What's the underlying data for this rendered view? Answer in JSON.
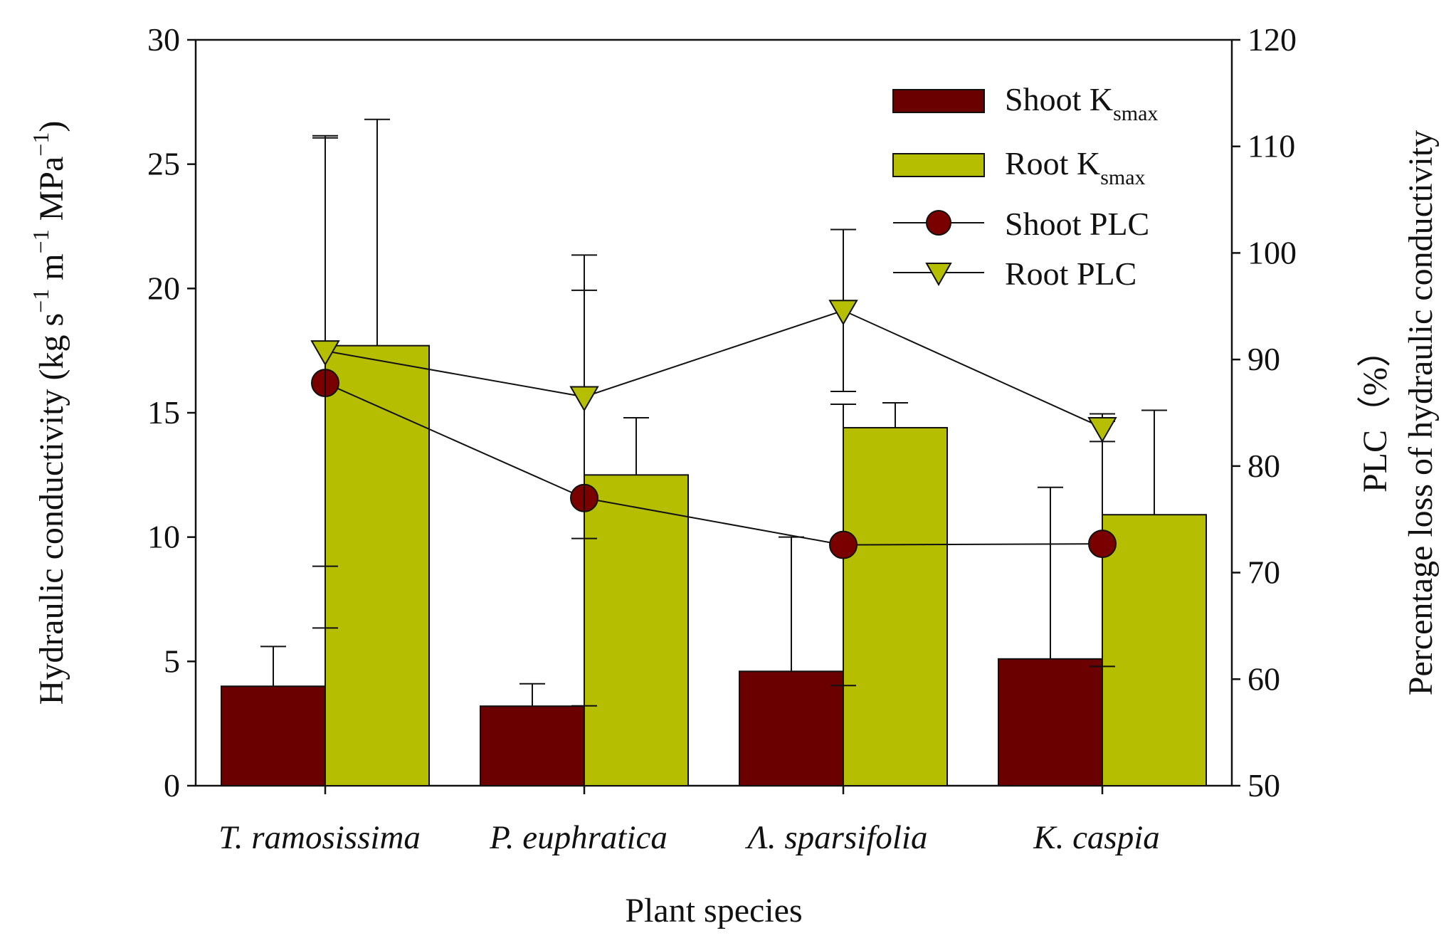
{
  "chart_data": {
    "type": "bar",
    "xlabel": "Plant species",
    "categories": [
      "T. ramosissima",
      "P. euphratica",
      "Λ. sparsifolia",
      "K. caspia"
    ],
    "ylabel_left": {
      "pre": "Hydraulic conductivity (kg s",
      "sup1": "−1",
      "mid1": " m",
      "sup2": "−1",
      "mid2": " MPa",
      "sup3": "−1",
      "post": ")"
    },
    "ylabel_right": {
      "line1": "PLC（%）",
      "line2": "Percentage loss of hydraulic conductivity"
    },
    "ylim_left": [
      0,
      30
    ],
    "yticks_left": [
      0,
      5,
      10,
      15,
      20,
      25,
      30
    ],
    "ylim_right": [
      50,
      120
    ],
    "yticks_right": [
      50,
      60,
      70,
      80,
      90,
      100,
      110,
      120
    ],
    "series": [
      {
        "name": "Shoot K",
        "name_sub": "smax",
        "kind": "bar",
        "axis": "left",
        "color": "#6b0000",
        "values": [
          4.0,
          3.2,
          4.6,
          5.1
        ],
        "errors": [
          1.6,
          0.9,
          5.4,
          6.9
        ]
      },
      {
        "name": "Root K",
        "name_sub": "smax",
        "kind": "bar",
        "axis": "left",
        "color": "#b5be00",
        "values": [
          17.7,
          12.5,
          14.4,
          10.9
        ],
        "errors": [
          9.1,
          2.3,
          1.0,
          4.2
        ]
      },
      {
        "name": "Shoot PLC",
        "kind": "line",
        "marker": "circle",
        "axis": "right",
        "color": "#7a0000",
        "values": [
          87.8,
          77.0,
          72.6,
          72.7
        ],
        "errors": [
          23.0,
          19.5,
          13.2,
          11.5
        ]
      },
      {
        "name": "Root PLC",
        "kind": "line",
        "marker": "triangle-down",
        "axis": "right",
        "color": "#b5be00",
        "values": [
          90.8,
          86.5,
          94.6,
          83.6
        ],
        "errors": [
          20.2,
          13.3,
          7.6,
          1.3
        ]
      }
    ],
    "legend_position": "top-right"
  }
}
